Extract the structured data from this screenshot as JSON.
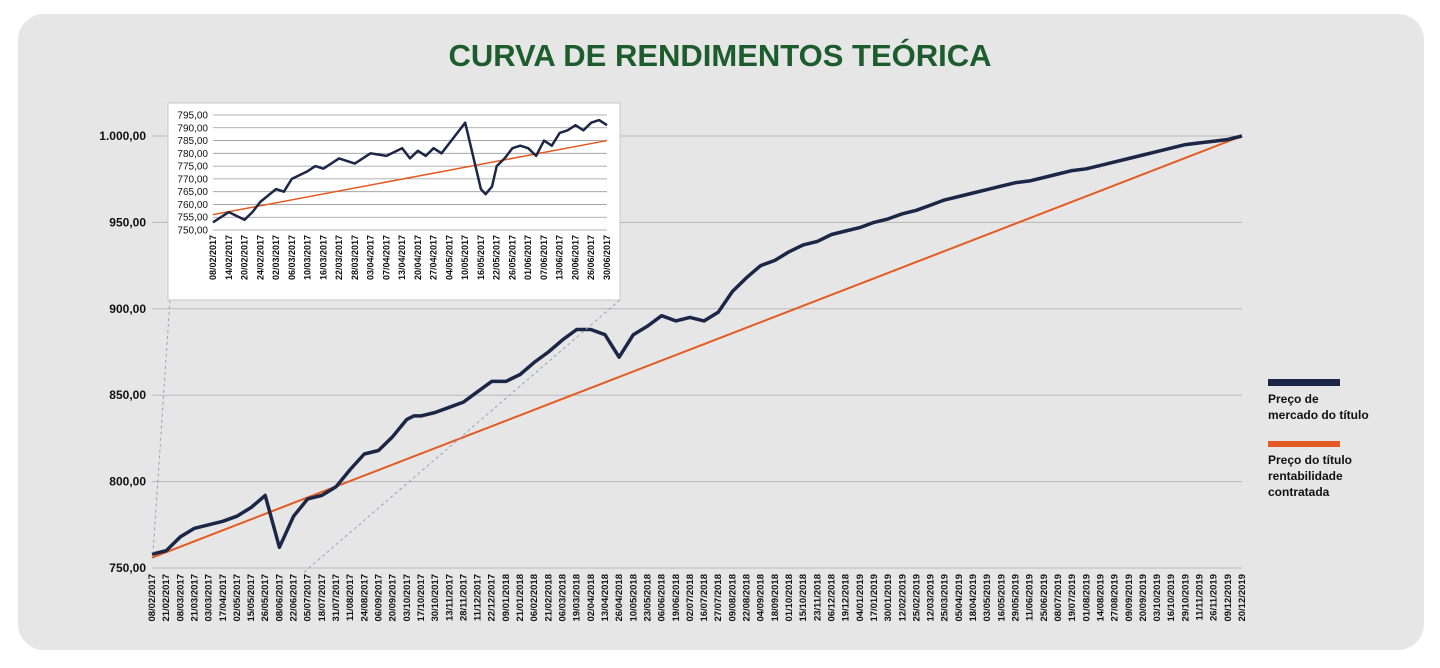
{
  "chart_data": {
    "type": "line",
    "title": "CURVA DE RENDIMENTOS TEÓRICA",
    "ylim": [
      750,
      1000
    ],
    "y_ticks": [
      "750,00",
      "800,00",
      "850,00",
      "900,00",
      "950,00",
      "1.000,00"
    ],
    "y_tick_values": [
      750,
      800,
      850,
      900,
      950,
      1000
    ],
    "x_ticks": [
      "08/02/2017",
      "21/02/2017",
      "08/03/2017",
      "21/03/2017",
      "03/03/2017",
      "17/04/2017",
      "02/05/2017",
      "15/05/2017",
      "26/05/2017",
      "08/06/2017",
      "22/06/2017",
      "05/07/2017",
      "18/07/2017",
      "31/07/2017",
      "11/08/2017",
      "24/08/2017",
      "06/09/2017",
      "20/09/2017",
      "03/10/2017",
      "17/10/2017",
      "30/10/2017",
      "13/11/2017",
      "28/11/2017",
      "11/12/2017",
      "22/12/2017",
      "09/01/2018",
      "21/01/2018",
      "06/02/2018",
      "21/02/2018",
      "06/03/2018",
      "19/03/2018",
      "02/04/2018",
      "13/04/2018",
      "26/04/2018",
      "10/05/2018",
      "23/05/2018",
      "06/06/2018",
      "19/06/2018",
      "02/07/2018",
      "16/07/2018",
      "27/07/2018",
      "09/08/2018",
      "22/08/2018",
      "04/09/2018",
      "18/09/2018",
      "01/10/2018",
      "15/10/2018",
      "23/11/2018",
      "06/12/2018",
      "19/12/2018",
      "04/01/2019",
      "17/01/2019",
      "30/01/2019",
      "12/02/2019",
      "25/02/2019",
      "12/03/2019",
      "25/03/2019",
      "05/04/2019",
      "18/04/2019",
      "03/05/2019",
      "16/05/2019",
      "29/05/2019",
      "11/06/2019",
      "25/06/2019",
      "08/07/2019",
      "19/07/2019",
      "01/08/2019",
      "14/08/2019",
      "27/08/2019",
      "09/09/2019",
      "20/09/2019",
      "03/10/2019",
      "16/10/2019",
      "29/10/2019",
      "11/11/2019",
      "26/11/2019",
      "09/12/2019",
      "20/12/2019"
    ],
    "grid": true,
    "legend_position": "right",
    "series": [
      {
        "name": "Preço de mercado do título",
        "color": "#1c2747",
        "x": [
          0,
          1,
          2,
          3,
          4,
          5,
          6,
          7,
          8,
          9,
          10,
          11,
          12,
          13,
          14,
          15,
          16,
          17,
          18,
          18.5,
          19,
          20,
          21,
          22,
          23,
          24,
          25,
          26,
          27,
          28,
          29,
          30,
          31,
          32,
          33,
          34,
          35,
          36,
          37,
          38,
          39,
          40,
          41,
          42,
          43,
          44,
          45,
          46,
          47,
          48,
          49,
          50,
          51,
          52,
          53,
          54,
          55,
          56,
          57,
          58,
          59,
          60,
          61,
          62,
          63,
          64,
          65,
          66,
          67,
          68,
          69,
          70,
          71,
          72,
          73,
          74,
          75,
          76,
          77
        ],
        "values": [
          758,
          760,
          768,
          773,
          775,
          777,
          780,
          785,
          792,
          762,
          780,
          790,
          792,
          797,
          807,
          816,
          818,
          826,
          836,
          838,
          838,
          840,
          843,
          846,
          852,
          858,
          858,
          862,
          869,
          875,
          882,
          888,
          888,
          885,
          872,
          885,
          890,
          896,
          893,
          895,
          893,
          898,
          910,
          918,
          925,
          928,
          933,
          937,
          939,
          943,
          945,
          947,
          950,
          952,
          955,
          957,
          960,
          963,
          965,
          967,
          969,
          971,
          973,
          974,
          976,
          978,
          980,
          981,
          983,
          985,
          987,
          989,
          991,
          993,
          995,
          996,
          997,
          998,
          1000
        ],
        "label_name": "Preço de mercado do título",
        "label_lines": [
          "Preço de",
          "mercado do título"
        ]
      },
      {
        "name": "Preço do título rentabilidade contratada",
        "color": "#e35a22",
        "x": [
          0,
          77
        ],
        "values": [
          756,
          1000
        ],
        "label_lines": [
          "Preço do título",
          "rentabilidade",
          "contratada"
        ]
      }
    ]
  },
  "inset_chart": {
    "type": "line",
    "ylim": [
      750,
      795
    ],
    "y_ticks": [
      "750,00",
      "755,00",
      "760,00",
      "765,00",
      "770,00",
      "775,00",
      "780,00",
      "785,00",
      "790,00",
      "795,00"
    ],
    "y_tick_values": [
      750,
      755,
      760,
      765,
      770,
      775,
      780,
      785,
      790,
      795
    ],
    "x_ticks": [
      "08/02/2017",
      "14/02/2017",
      "20/02/2017",
      "24/02/2017",
      "02/03/2017",
      "06/03/2017",
      "10/03/2017",
      "16/03/2017",
      "22/03/2017",
      "28/03/2017",
      "03/04/2017",
      "07/04/2017",
      "13/04/2017",
      "20/04/2017",
      "27/04/2017",
      "04/05/2017",
      "10/05/2017",
      "16/05/2017",
      "22/05/2017",
      "26/05/2017",
      "01/06/2017",
      "07/06/2017",
      "13/06/2017",
      "20/06/2017",
      "26/06/2017",
      "30/06/2017"
    ],
    "market": [
      [
        0,
        753
      ],
      [
        1,
        757
      ],
      [
        2,
        754
      ],
      [
        2.5,
        757
      ],
      [
        3,
        761
      ],
      [
        4,
        766
      ],
      [
        4.5,
        765
      ],
      [
        5,
        770
      ],
      [
        6,
        773
      ],
      [
        6.5,
        775
      ],
      [
        7,
        774
      ],
      [
        8,
        778
      ],
      [
        9,
        776
      ],
      [
        10,
        780
      ],
      [
        11,
        779
      ],
      [
        12,
        782
      ],
      [
        12.5,
        778
      ],
      [
        13,
        781
      ],
      [
        13.5,
        779
      ],
      [
        14,
        782
      ],
      [
        14.5,
        780
      ],
      [
        15,
        784
      ],
      [
        16,
        792
      ],
      [
        17,
        766
      ],
      [
        17.3,
        764
      ],
      [
        17.7,
        767
      ],
      [
        18,
        775
      ],
      [
        18.5,
        778
      ],
      [
        19,
        782
      ],
      [
        19.5,
        783
      ],
      [
        20,
        782
      ],
      [
        20.5,
        779
      ],
      [
        21,
        785
      ],
      [
        21.5,
        783
      ],
      [
        22,
        788
      ],
      [
        22.5,
        789
      ],
      [
        23,
        791
      ],
      [
        23.5,
        789
      ],
      [
        24,
        792
      ],
      [
        24.5,
        793
      ],
      [
        25,
        791
      ]
    ],
    "contracted": [
      [
        0,
        756
      ],
      [
        25,
        785
      ]
    ]
  }
}
